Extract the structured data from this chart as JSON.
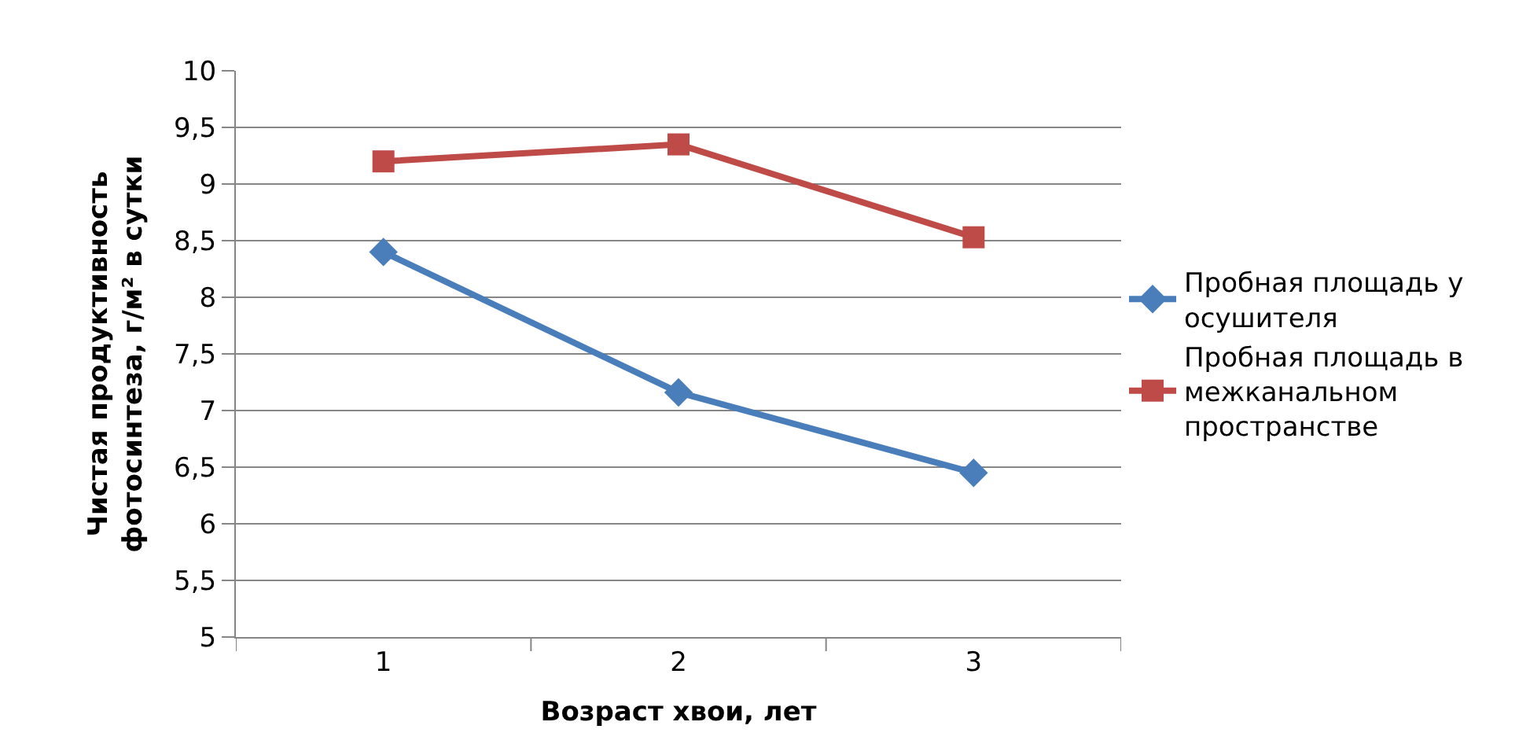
{
  "chart_data": {
    "type": "line",
    "xlabel": "Возраст хвои, лет",
    "ylabel": "Чистая продуктивность\nфотосинтеза, г/м² в сутки",
    "categories": [
      "1",
      "2",
      "3"
    ],
    "series": [
      {
        "name": "Пробная площадь у\nосушителя",
        "color": "#4a7ebb",
        "marker": "diamond",
        "values": [
          8.4,
          7.16,
          6.45
        ]
      },
      {
        "name": "Пробная площадь в\nмежканальном\nпространстве",
        "color": "#be4b48",
        "marker": "square",
        "values": [
          9.2,
          9.35,
          8.53
        ]
      }
    ],
    "ylim": [
      5,
      10
    ],
    "yticks": [
      5,
      {
        "value": 5.5,
        "label": "5,5"
      },
      6,
      {
        "value": 6.5,
        "label": "6,5"
      },
      7,
      {
        "value": 7.5,
        "label": "7,5"
      },
      8,
      {
        "value": 8.5,
        "label": "8,5"
      },
      9,
      {
        "value": 9.5,
        "label": "9,5"
      },
      10
    ],
    "grid": "y",
    "legend": "right",
    "line_style": "solid"
  }
}
